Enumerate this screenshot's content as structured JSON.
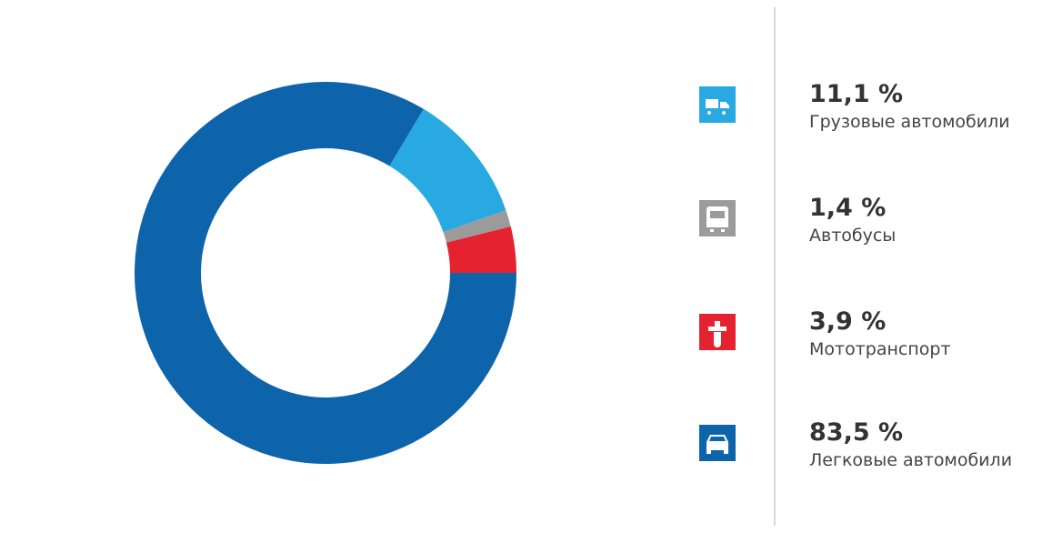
{
  "chart_data": {
    "type": "pie",
    "categories": [
      "Грузовые автомобили",
      "Автобусы",
      "Мототранспорт",
      "Легковые автомобили"
    ],
    "values": [
      11.1,
      1.4,
      3.9,
      83.5
    ],
    "value_labels": [
      "11,1 %",
      "1,4 %",
      "3,9 %",
      "83,5 %"
    ],
    "colors": [
      "#29a9e1",
      "#9b9b9b",
      "#e52330",
      "#0d64ab"
    ]
  }
}
